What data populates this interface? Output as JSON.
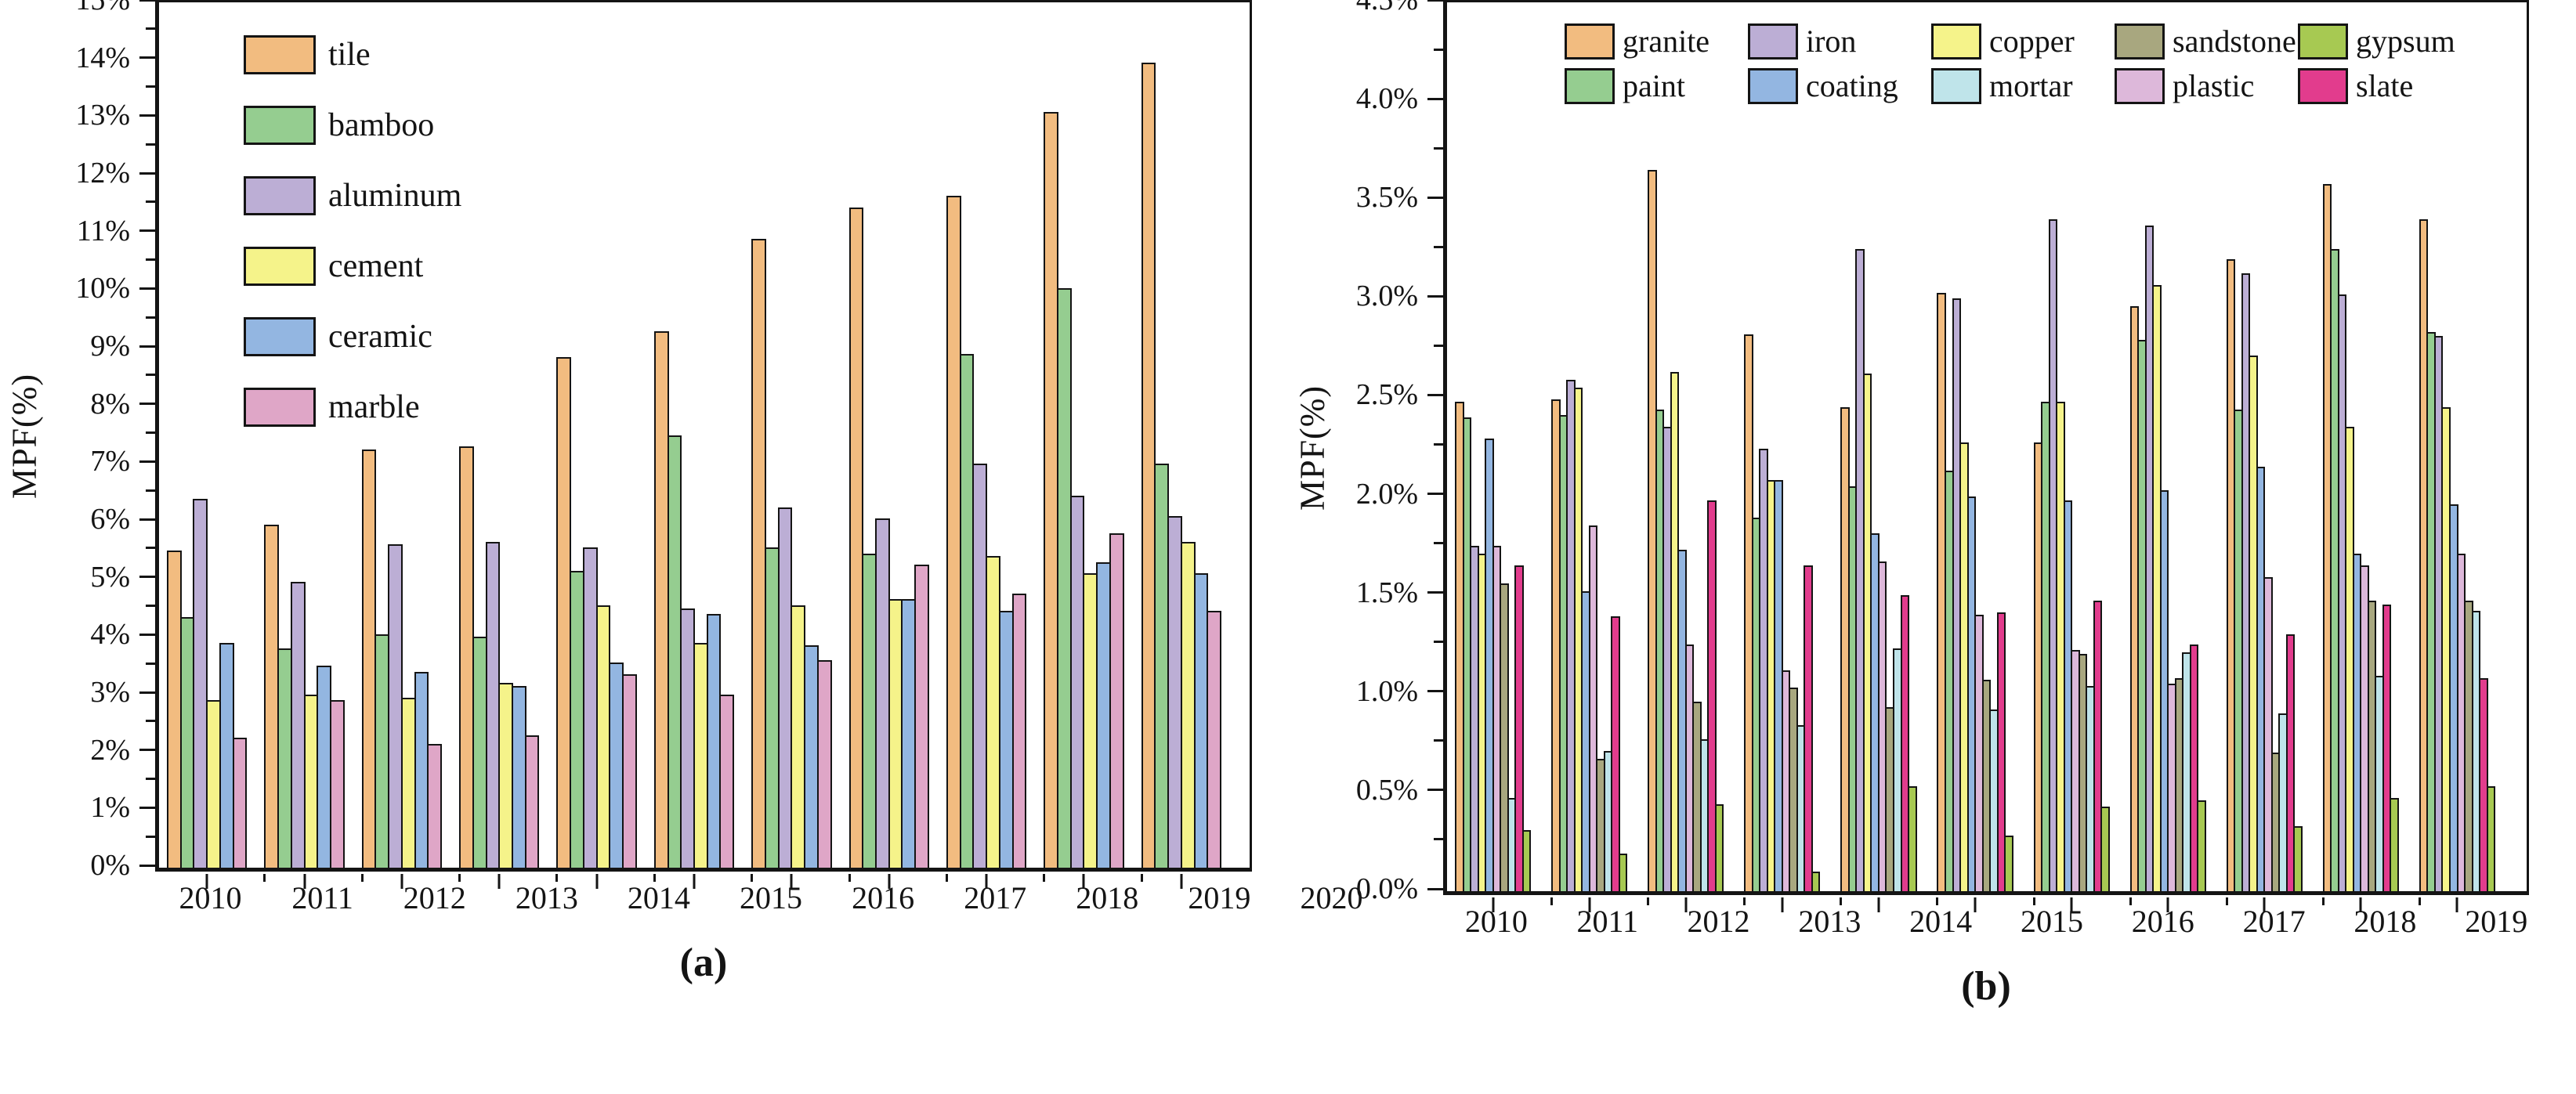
{
  "chart_data": [
    {
      "id": "a",
      "type": "bar",
      "caption": "(a)",
      "ylabel": "MPF(%)",
      "grid": false,
      "legend_position": "top-left-vertical",
      "categories": [
        "2010",
        "2011",
        "2012",
        "2013",
        "2014",
        "2015",
        "2016",
        "2017",
        "2018",
        "2019",
        "2020"
      ],
      "ylim": [
        0,
        15
      ],
      "ytick_step": 1,
      "yminor_step": 0.5,
      "ytick_decimals": 0,
      "ytick_suffix": "%",
      "legend_order": [
        "tile",
        "bamboo",
        "aluminum",
        "cement",
        "ceramic",
        "marble"
      ],
      "series": [
        {
          "name": "tile",
          "color": "#F2BC80",
          "values": [
            5.5,
            5.95,
            7.25,
            7.3,
            8.85,
            9.3,
            10.9,
            11.45,
            11.65,
            13.1,
            13.95
          ]
        },
        {
          "name": "bamboo",
          "color": "#95CD90",
          "values": [
            4.35,
            3.8,
            4.05,
            4.0,
            5.15,
            7.5,
            5.55,
            5.45,
            8.9,
            10.05,
            7.0
          ]
        },
        {
          "name": "aluminum",
          "color": "#BCAED5",
          "values": [
            6.4,
            4.95,
            5.6,
            5.65,
            5.55,
            4.5,
            6.25,
            6.05,
            7.0,
            6.45,
            6.1
          ]
        },
        {
          "name": "cement",
          "color": "#F5F38A",
          "values": [
            2.9,
            3.0,
            2.95,
            3.2,
            4.55,
            3.9,
            4.55,
            4.65,
            5.4,
            5.1,
            5.65
          ]
        },
        {
          "name": "ceramic",
          "color": "#93B6E1",
          "values": [
            3.9,
            3.5,
            3.4,
            3.15,
            3.55,
            4.4,
            3.85,
            4.65,
            4.45,
            5.3,
            5.1
          ]
        },
        {
          "name": "marble",
          "color": "#DFA6C7",
          "values": [
            2.25,
            2.9,
            2.15,
            2.3,
            3.35,
            3.0,
            3.6,
            5.25,
            4.75,
            5.8,
            4.45
          ]
        }
      ]
    },
    {
      "id": "b",
      "type": "bar",
      "caption": "(b)",
      "ylabel": "MPF(%)",
      "grid": false,
      "legend_position": "top-grid-5col",
      "categories": [
        "2010",
        "2011",
        "2012",
        "2013",
        "2014",
        "2015",
        "2016",
        "2017",
        "2018",
        "2019",
        "2020"
      ],
      "ylim": [
        0,
        4.5
      ],
      "ytick_step": 0.5,
      "yminor_step": 0.25,
      "ytick_decimals": 1,
      "ytick_suffix": "%",
      "legend_order": [
        "granite",
        "iron",
        "copper",
        "sandstone",
        "gypsum",
        "paint",
        "coating",
        "mortar",
        "plastic",
        "slate"
      ],
      "series": [
        {
          "name": "granite",
          "color": "#F2BC80",
          "values": [
            2.48,
            2.49,
            3.65,
            2.82,
            2.45,
            3.03,
            2.27,
            2.96,
            3.2,
            3.58,
            3.4
          ]
        },
        {
          "name": "paint",
          "color": "#95CD90",
          "values": [
            2.4,
            2.41,
            2.44,
            1.89,
            2.05,
            2.13,
            2.48,
            2.79,
            2.44,
            3.25,
            2.83
          ]
        },
        {
          "name": "iron",
          "color": "#BCAED5",
          "values": [
            1.75,
            2.59,
            2.35,
            2.24,
            3.25,
            3.0,
            3.4,
            3.37,
            3.13,
            3.02,
            2.81
          ]
        },
        {
          "name": "copper",
          "color": "#F5F38A",
          "values": [
            1.71,
            2.55,
            2.63,
            2.08,
            2.62,
            2.27,
            2.48,
            3.07,
            2.71,
            2.35,
            2.45
          ]
        },
        {
          "name": "coating",
          "color": "#93B6E1",
          "values": [
            2.29,
            1.52,
            1.73,
            2.08,
            1.81,
            2.0,
            1.98,
            2.03,
            2.15,
            1.71,
            1.96
          ]
        },
        {
          "name": "plastic",
          "color": "#DDB8DA",
          "values": [
            1.75,
            1.85,
            1.25,
            1.12,
            1.67,
            1.4,
            1.22,
            1.05,
            1.59,
            1.65,
            1.71
          ]
        },
        {
          "name": "sandstone",
          "color": "#A8A77F",
          "values": [
            1.56,
            0.67,
            0.96,
            1.03,
            0.93,
            1.07,
            1.2,
            1.08,
            0.7,
            1.47,
            1.47
          ]
        },
        {
          "name": "mortar",
          "color": "#BFE4EA",
          "values": [
            0.47,
            0.71,
            0.77,
            0.84,
            1.23,
            0.92,
            1.04,
            1.21,
            0.9,
            1.09,
            1.42
          ]
        },
        {
          "name": "slate",
          "color": "#E23C8D",
          "values": [
            1.65,
            1.39,
            1.98,
            1.65,
            1.5,
            1.41,
            1.47,
            1.25,
            1.3,
            1.45,
            1.08
          ]
        },
        {
          "name": "gypsum",
          "color": "#A7C952",
          "values": [
            0.31,
            0.19,
            0.44,
            0.1,
            0.53,
            0.28,
            0.43,
            0.46,
            0.33,
            0.47,
            0.53
          ]
        }
      ]
    }
  ]
}
